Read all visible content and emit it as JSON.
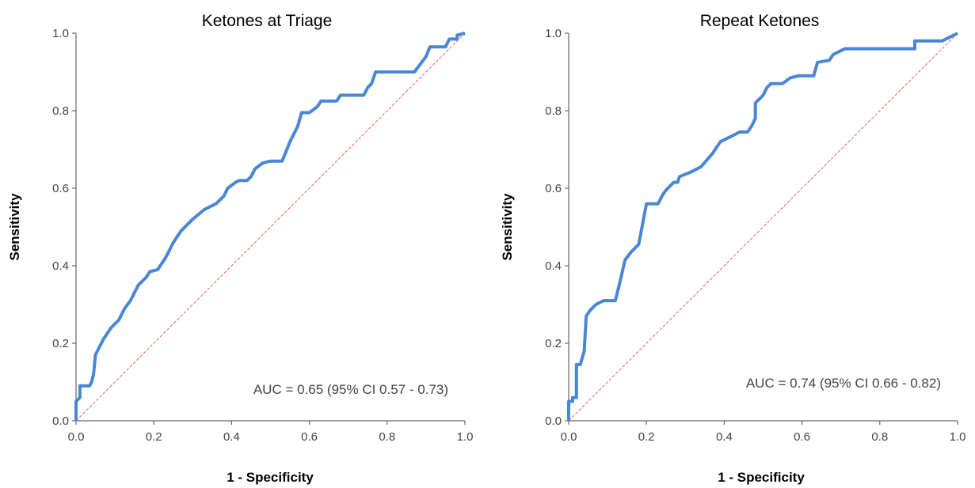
{
  "chart_data": [
    {
      "type": "line",
      "title": "Ketones at Triage",
      "xlabel": "1 - Specificity",
      "ylabel": "Sensitivity",
      "xlim": [
        0,
        1
      ],
      "ylim": [
        0,
        1
      ],
      "xticks": [
        "0.0",
        "0.2",
        "0.4",
        "0.6",
        "0.8",
        "1.0"
      ],
      "yticks": [
        "0.0",
        "0.2",
        "0.4",
        "0.6",
        "0.8",
        "1.0"
      ],
      "annotation": "AUC = 0.65 (95% CI 0.57 - 0.73)",
      "colors": {
        "roc": "#4a86d6",
        "reference": "#e06070"
      },
      "series": [
        {
          "values": [
            [
              0,
              0
            ],
            [
              0,
              0.05
            ],
            [
              0.01,
              0.06
            ],
            [
              0.01,
              0.09
            ],
            [
              0.035,
              0.09
            ],
            [
              0.04,
              0.1
            ],
            [
              0.045,
              0.12
            ],
            [
              0.05,
              0.17
            ],
            [
              0.07,
              0.21
            ],
            [
              0.09,
              0.24
            ],
            [
              0.11,
              0.26
            ],
            [
              0.125,
              0.29
            ],
            [
              0.14,
              0.31
            ],
            [
              0.15,
              0.33
            ],
            [
              0.16,
              0.35
            ],
            [
              0.18,
              0.37
            ],
            [
              0.19,
              0.385
            ],
            [
              0.21,
              0.39
            ],
            [
              0.23,
              0.42
            ],
            [
              0.25,
              0.46
            ],
            [
              0.27,
              0.49
            ],
            [
              0.3,
              0.52
            ],
            [
              0.33,
              0.545
            ],
            [
              0.36,
              0.56
            ],
            [
              0.38,
              0.58
            ],
            [
              0.39,
              0.6
            ],
            [
              0.41,
              0.615
            ],
            [
              0.42,
              0.62
            ],
            [
              0.44,
              0.62
            ],
            [
              0.45,
              0.63
            ],
            [
              0.46,
              0.65
            ],
            [
              0.48,
              0.665
            ],
            [
              0.5,
              0.67
            ],
            [
              0.53,
              0.67
            ],
            [
              0.55,
              0.72
            ],
            [
              0.57,
              0.76
            ],
            [
              0.58,
              0.795
            ],
            [
              0.6,
              0.795
            ],
            [
              0.62,
              0.81
            ],
            [
              0.63,
              0.825
            ],
            [
              0.67,
              0.825
            ],
            [
              0.68,
              0.84
            ],
            [
              0.74,
              0.84
            ],
            [
              0.75,
              0.86
            ],
            [
              0.76,
              0.87
            ],
            [
              0.77,
              0.9
            ],
            [
              0.87,
              0.9
            ],
            [
              0.9,
              0.94
            ],
            [
              0.91,
              0.965
            ],
            [
              0.95,
              0.965
            ],
            [
              0.96,
              0.985
            ],
            [
              0.98,
              0.985
            ],
            [
              0.98,
              0.995
            ],
            [
              1,
              1
            ]
          ]
        },
        {
          "values": [
            [
              0,
              0
            ],
            [
              1,
              1
            ]
          ]
        }
      ]
    },
    {
      "type": "line",
      "title": "Repeat Ketones",
      "xlabel": "1 - Specificity",
      "ylabel": "Sensitivity",
      "xlim": [
        0,
        1
      ],
      "ylim": [
        0,
        1
      ],
      "xticks": [
        "0.0",
        "0.2",
        "0.4",
        "0.6",
        "0.8",
        "1.0"
      ],
      "yticks": [
        "0.0",
        "0.2",
        "0.4",
        "0.6",
        "0.8",
        "1.0"
      ],
      "annotation": "AUC = 0.74 (95% CI 0.66 - 0.82)",
      "colors": {
        "roc": "#4a86d6",
        "reference": "#e06070"
      },
      "series": [
        {
          "values": [
            [
              0,
              0
            ],
            [
              0,
              0.05
            ],
            [
              0.01,
              0.05
            ],
            [
              0.01,
              0.06
            ],
            [
              0.02,
              0.06
            ],
            [
              0.02,
              0.145
            ],
            [
              0.03,
              0.145
            ],
            [
              0.04,
              0.18
            ],
            [
              0.045,
              0.27
            ],
            [
              0.055,
              0.285
            ],
            [
              0.07,
              0.3
            ],
            [
              0.09,
              0.31
            ],
            [
              0.12,
              0.31
            ],
            [
              0.13,
              0.35
            ],
            [
              0.145,
              0.415
            ],
            [
              0.16,
              0.435
            ],
            [
              0.18,
              0.455
            ],
            [
              0.2,
              0.56
            ],
            [
              0.23,
              0.56
            ],
            [
              0.24,
              0.58
            ],
            [
              0.25,
              0.595
            ],
            [
              0.27,
              0.615
            ],
            [
              0.28,
              0.615
            ],
            [
              0.285,
              0.63
            ],
            [
              0.31,
              0.64
            ],
            [
              0.34,
              0.655
            ],
            [
              0.37,
              0.69
            ],
            [
              0.39,
              0.72
            ],
            [
              0.42,
              0.735
            ],
            [
              0.44,
              0.745
            ],
            [
              0.46,
              0.745
            ],
            [
              0.47,
              0.76
            ],
            [
              0.48,
              0.78
            ],
            [
              0.48,
              0.82
            ],
            [
              0.5,
              0.84
            ],
            [
              0.51,
              0.86
            ],
            [
              0.52,
              0.87
            ],
            [
              0.55,
              0.87
            ],
            [
              0.57,
              0.885
            ],
            [
              0.59,
              0.89
            ],
            [
              0.63,
              0.89
            ],
            [
              0.64,
              0.925
            ],
            [
              0.67,
              0.93
            ],
            [
              0.68,
              0.945
            ],
            [
              0.7,
              0.955
            ],
            [
              0.71,
              0.96
            ],
            [
              0.89,
              0.96
            ],
            [
              0.89,
              0.98
            ],
            [
              0.96,
              0.98
            ],
            [
              1,
              1
            ]
          ]
        },
        {
          "values": [
            [
              0,
              0
            ],
            [
              1,
              1
            ]
          ]
        }
      ]
    }
  ]
}
